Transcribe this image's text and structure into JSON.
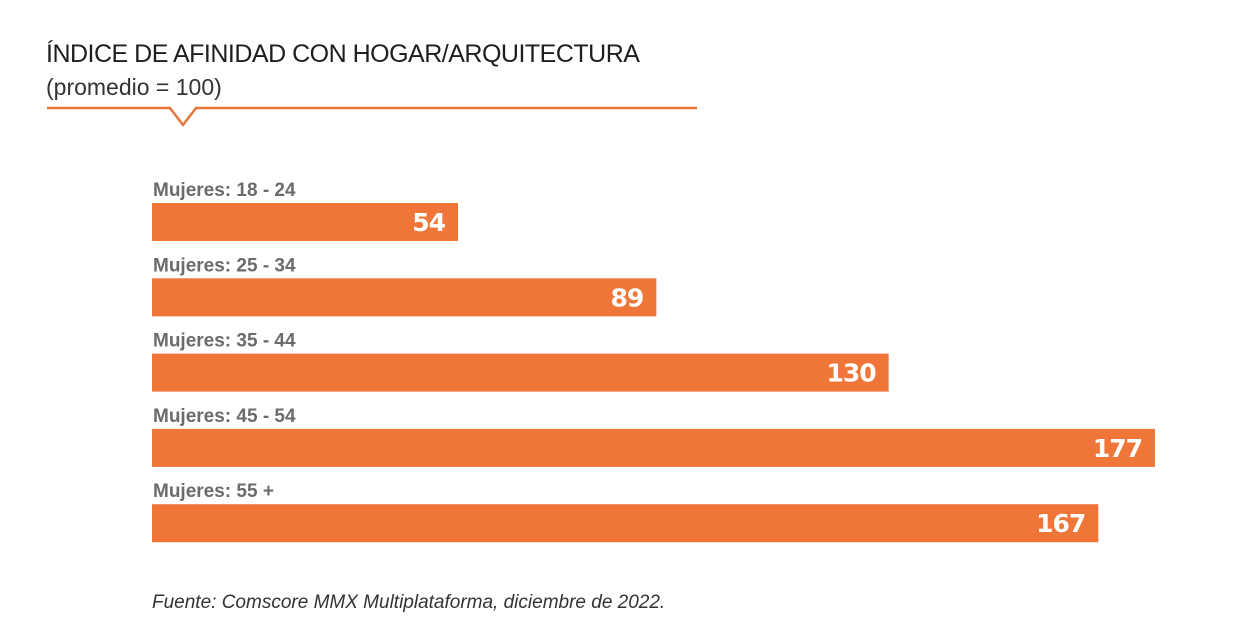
{
  "chart_data": {
    "type": "bar",
    "orientation": "horizontal",
    "title": "ÍNDICE DE AFINIDAD CON HOGAR/ARQUITECTURA",
    "subtitle": "(promedio = 100)",
    "categories": [
      "Mujeres: 18 - 24",
      "Mujeres: 25 - 34",
      "Mujeres: 35 - 44",
      "Mujeres: 45 - 54",
      "Mujeres: 55 +"
    ],
    "values": [
      54,
      89,
      130,
      177,
      167
    ],
    "data_labels": [
      "54",
      "89",
      "130",
      "177",
      "167"
    ],
    "xlabel": "",
    "ylabel": "",
    "grid": false,
    "bar_color": "#F07538",
    "accent_color": "#E8743B",
    "source": "Fuente: Comscore MMX Multiplataforma, diciembre de 2022."
  }
}
